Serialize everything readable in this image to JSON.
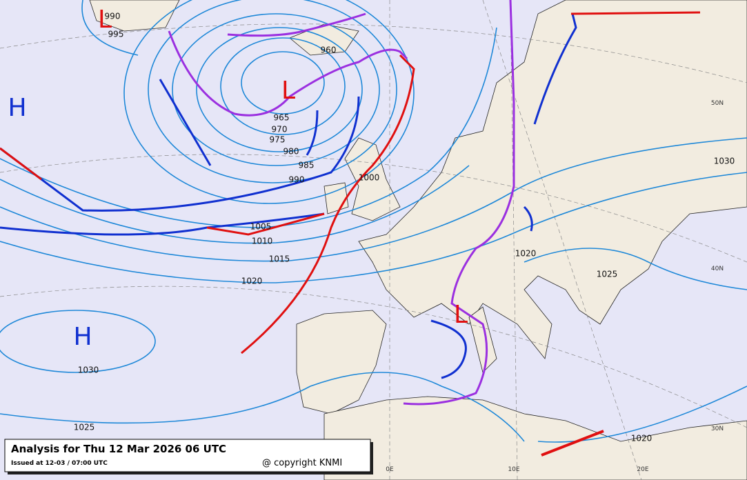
{
  "map": {
    "isobar_labels": [
      990,
      995,
      960,
      965,
      970,
      975,
      980,
      985,
      990,
      1000,
      1005,
      1010,
      1015,
      1020,
      1030,
      1025,
      1030,
      1020,
      1025,
      1020
    ],
    "pressure_centers": [
      "H",
      "H",
      "L",
      "L",
      "L"
    ],
    "grid_labels": [
      "50N",
      "40N",
      "30N",
      "0E",
      "10E",
      "20E"
    ]
  },
  "caption": {
    "title": "Analysis for Thu 12 Mar 2026 06 UTC",
    "issued": "Issued at 12-03 / 07:00 UTC",
    "copyright": "@ copyright KNMI"
  }
}
